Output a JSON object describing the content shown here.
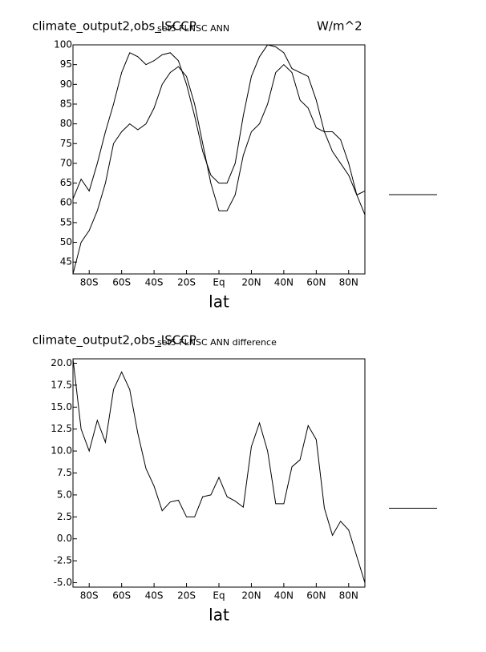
{
  "chart_data": [
    {
      "type": "line",
      "title": "climate_output2,obs_ISCCP",
      "subtitle": "set5 FLNSC ANN",
      "units": "W/m^2",
      "xlabel": "lat",
      "x": [
        -90,
        -85,
        -80,
        -75,
        -70,
        -65,
        -60,
        -55,
        -50,
        -45,
        -40,
        -35,
        -30,
        -25,
        -20,
        -15,
        -10,
        -5,
        0,
        5,
        10,
        15,
        20,
        25,
        30,
        35,
        40,
        45,
        50,
        55,
        60,
        65,
        70,
        75,
        80,
        85,
        90
      ],
      "series": [
        {
          "color": "#000000",
          "values": [
            61,
            66,
            63,
            70,
            78,
            85,
            93,
            98,
            97,
            95,
            96,
            97.5,
            98,
            96,
            90,
            82,
            73,
            67,
            65,
            65,
            70,
            82,
            92,
            97,
            100,
            99.5,
            98,
            94,
            93,
            92,
            86,
            78,
            73,
            70,
            67,
            62,
            63
          ]
        },
        {
          "color": "#000000",
          "values": [
            42,
            50,
            53,
            58,
            65,
            75,
            78,
            80,
            78.5,
            80,
            84,
            90,
            93,
            94.5,
            92,
            85,
            75,
            65,
            58,
            58,
            62,
            72,
            78,
            80,
            85,
            93,
            95,
            93,
            86,
            84,
            79,
            78,
            78,
            76,
            70,
            62,
            57
          ]
        }
      ],
      "xlim": [
        -90,
        90
      ],
      "xticks": [
        {
          "value": -80,
          "label": "80S"
        },
        {
          "value": -60,
          "label": "60S"
        },
        {
          "value": -40,
          "label": "40S"
        },
        {
          "value": -20,
          "label": "20S"
        },
        {
          "value": 0,
          "label": "Eq"
        },
        {
          "value": 20,
          "label": "20N"
        },
        {
          "value": 40,
          "label": "40N"
        },
        {
          "value": 60,
          "label": "60N"
        },
        {
          "value": 80,
          "label": "80N"
        }
      ],
      "ylim": [
        42,
        100
      ],
      "yticks": [
        45,
        50,
        55,
        60,
        65,
        70,
        75,
        80,
        85,
        90,
        95,
        100
      ],
      "grid": false
    },
    {
      "type": "line",
      "title": "climate_output2,obs_ISCCP",
      "subtitle": "set5 FLNSC ANN difference",
      "xlabel": "lat",
      "x": [
        -90,
        -85,
        -80,
        -75,
        -70,
        -65,
        -60,
        -55,
        -50,
        -45,
        -40,
        -35,
        -30,
        -25,
        -20,
        -15,
        -10,
        -5,
        0,
        5,
        10,
        15,
        20,
        25,
        30,
        35,
        40,
        45,
        50,
        55,
        60,
        65,
        70,
        75,
        80,
        85,
        90
      ],
      "series": [
        {
          "color": "#000000",
          "values": [
            20.5,
            12.5,
            10,
            13.5,
            11,
            17,
            19,
            17,
            12,
            8,
            6,
            3.2,
            4.2,
            4.4,
            2.5,
            2.5,
            4.8,
            5,
            7,
            4.8,
            4.3,
            3.6,
            10.5,
            13.2,
            10,
            4,
            4,
            8.2,
            9,
            12.9,
            11.3,
            3.5,
            0.4,
            2,
            1,
            -2,
            -5
          ]
        }
      ],
      "xlim": [
        -90,
        90
      ],
      "xticks": [
        {
          "value": -80,
          "label": "80S"
        },
        {
          "value": -60,
          "label": "60S"
        },
        {
          "value": -40,
          "label": "40S"
        },
        {
          "value": -20,
          "label": "20S"
        },
        {
          "value": 0,
          "label": "Eq"
        },
        {
          "value": 20,
          "label": "20N"
        },
        {
          "value": 40,
          "label": "40N"
        },
        {
          "value": 60,
          "label": "60N"
        },
        {
          "value": 80,
          "label": "80N"
        }
      ],
      "ylim": [
        -5.5,
        20.5
      ],
      "yticks": [
        {
          "value": -5,
          "label": "-5.0"
        },
        {
          "value": -2.5,
          "label": "-2.5"
        },
        {
          "value": 0,
          "label": "0.0"
        },
        {
          "value": 2.5,
          "label": "2.5"
        },
        {
          "value": 5,
          "label": "5.0"
        },
        {
          "value": 7.5,
          "label": "7.5"
        },
        {
          "value": 10,
          "label": "10.0"
        },
        {
          "value": 12.5,
          "label": "12.5"
        },
        {
          "value": 15,
          "label": "15.0"
        },
        {
          "value": 17.5,
          "label": "17.5"
        },
        {
          "value": 20,
          "label": "20.0"
        }
      ],
      "grid": false
    }
  ]
}
